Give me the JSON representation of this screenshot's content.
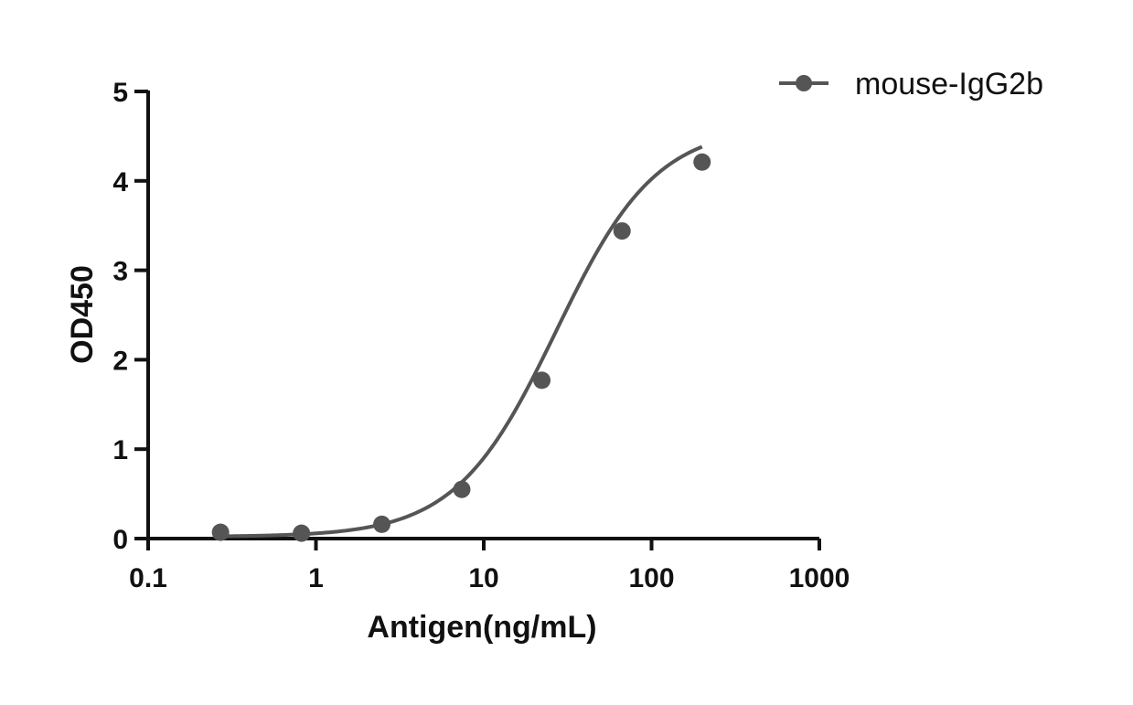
{
  "chart_data": {
    "type": "scatter",
    "title": "",
    "xlabel": "Antigen(ng/mL)",
    "ylabel": "OD450",
    "xscale": "log",
    "xlim": [
      0.1,
      1000
    ],
    "ylim": [
      0,
      5
    ],
    "xticks": [
      "0.1",
      "1",
      "10",
      "100",
      "1000"
    ],
    "yticks": [
      "0",
      "1",
      "2",
      "3",
      "4",
      "5"
    ],
    "grid": false,
    "legend_position": "top-right",
    "series": [
      {
        "name": "mouse-IgG2b",
        "color": "#555555",
        "x": [
          0.27,
          0.82,
          2.47,
          7.4,
          22.2,
          66.7,
          200
        ],
        "y": [
          0.07,
          0.06,
          0.16,
          0.55,
          1.77,
          3.44,
          4.21
        ],
        "fit_curve": "sigmoidal"
      }
    ]
  }
}
